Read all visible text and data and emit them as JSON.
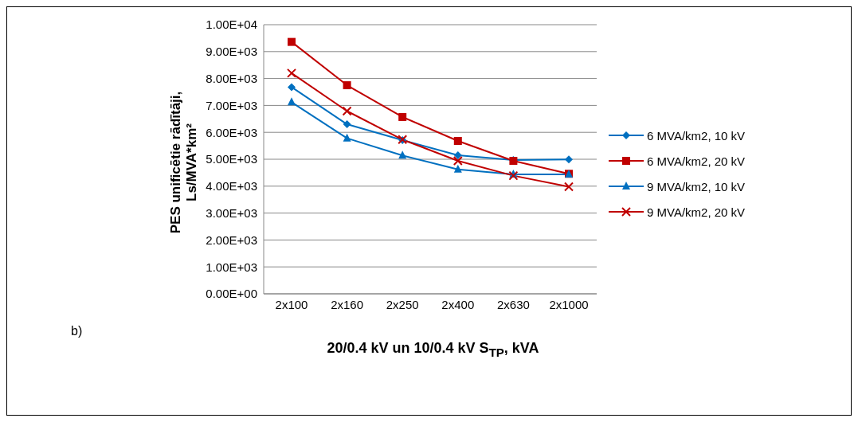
{
  "chart_data": {
    "type": "line",
    "ylabel": "PES unificētie rādītāji, Ls/MVA*km²",
    "xlabel": "20/0.4 kV un 10/0.4 kV S$_{TP}$, kVA",
    "annotations": [
      "b)"
    ],
    "categories": [
      "2x100",
      "2x160",
      "2x250",
      "2x400",
      "2x630",
      "2x1000"
    ],
    "ylim": [
      0,
      10000
    ],
    "yticks": [
      {
        "value": 0,
        "label": "0.00E+00"
      },
      {
        "value": 1000,
        "label": "1.00E+03"
      },
      {
        "value": 2000,
        "label": "2.00E+03"
      },
      {
        "value": 3000,
        "label": "3.00E+03"
      },
      {
        "value": 4000,
        "label": "4.00E+03"
      },
      {
        "value": 5000,
        "label": "5.00E+03"
      },
      {
        "value": 6000,
        "label": "6.00E+03"
      },
      {
        "value": 7000,
        "label": "7.00E+03"
      },
      {
        "value": 8000,
        "label": "8.00E+03"
      },
      {
        "value": 9000,
        "label": "9.00E+03"
      },
      {
        "value": 10000,
        "label": "1.00E+04"
      }
    ],
    "grid": "y",
    "legend": "right",
    "line_style": "solid",
    "series": [
      {
        "name": "6 MVA/km2, 10 kV",
        "color": "#0070c0",
        "marker": "diamond",
        "values": [
          7680,
          6300,
          5710,
          5150,
          4970,
          4990
        ]
      },
      {
        "name": "6 MVA/km2, 20 kV",
        "color": "#c00000",
        "marker": "square",
        "values": [
          9360,
          7750,
          6570,
          5680,
          4940,
          4460
        ]
      },
      {
        "name": "9 MVA/km2, 10 kV",
        "color": "#0070c0",
        "marker": "triangle",
        "values": [
          7120,
          5780,
          5140,
          4620,
          4440,
          4440
        ]
      },
      {
        "name": "9 MVA/km2, 20 kV",
        "color": "#c00000",
        "marker": "cross",
        "values": [
          8200,
          6790,
          5730,
          4940,
          4390,
          3980
        ]
      }
    ]
  }
}
